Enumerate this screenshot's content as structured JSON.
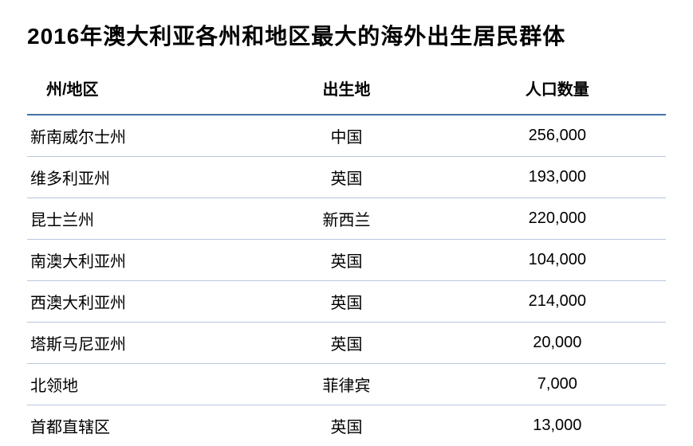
{
  "title": "2016年澳大利亚各州和地区最大的海外出生居民群体",
  "table": {
    "type": "table",
    "background_color": "#ffffff",
    "header_border_color": "#4472a8",
    "row_border_color": "#b8c6dd",
    "title_fontsize": 28,
    "header_fontsize": 20,
    "cell_fontsize": 20,
    "text_color": "#000000",
    "columns": [
      {
        "key": "state",
        "label": "州/地区",
        "align": "left"
      },
      {
        "key": "origin",
        "label": "出生地",
        "align": "center"
      },
      {
        "key": "population",
        "label": "人口数量",
        "align": "center"
      }
    ],
    "rows": [
      {
        "state": "新南威尔士州",
        "origin": "中国",
        "population": "256,000"
      },
      {
        "state": "维多利亚州",
        "origin": "英国",
        "population": "193,000"
      },
      {
        "state": "昆士兰州",
        "origin": "新西兰",
        "population": "220,000"
      },
      {
        "state": "南澳大利亚州",
        "origin": "英国",
        "population": "104,000"
      },
      {
        "state": "西澳大利亚州",
        "origin": "英国",
        "population": "214,000"
      },
      {
        "state": "塔斯马尼亚州",
        "origin": "英国",
        "population": "20,000"
      },
      {
        "state": "北领地",
        "origin": "菲律宾",
        "population": "7,000"
      },
      {
        "state": "首都直辖区",
        "origin": "英国",
        "population": "13,000"
      }
    ]
  }
}
